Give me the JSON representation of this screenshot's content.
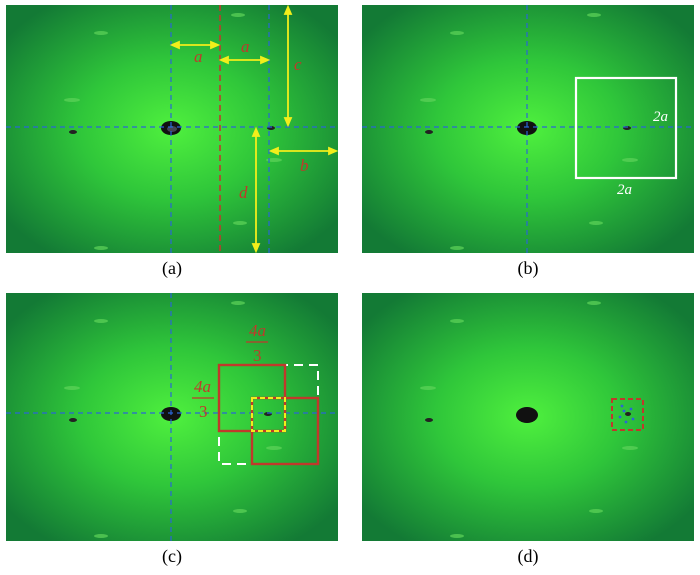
{
  "figure": {
    "panels": [
      {
        "caption": "(a)",
        "labels": {
          "a1": "a",
          "a2": "a",
          "c": "c",
          "b": "b",
          "d": "d"
        }
      },
      {
        "caption": "(b)",
        "labels": {
          "side_right": "2a",
          "side_bottom": "2a"
        }
      },
      {
        "caption": "(c)",
        "labels": {
          "frac_top_num": "4a",
          "frac_top_den": "3",
          "frac_left_num": "4a",
          "frac_left_den": "3"
        }
      },
      {
        "caption": "(d)",
        "labels": {}
      }
    ],
    "colors": {
      "background_green": "#1f9a3a",
      "bright_green": "#35e03a",
      "axis_blue": "#2a66d6",
      "arrow_yellow": "#f2ee1b",
      "red": "#c0392b",
      "white": "#ffffff"
    }
  }
}
